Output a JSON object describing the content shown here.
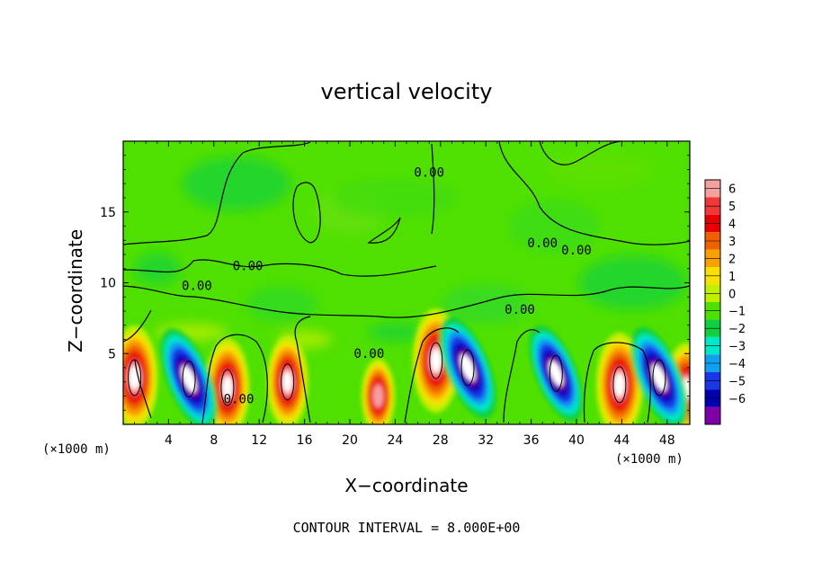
{
  "chart_data": {
    "type": "heatmap",
    "title": "vertical velocity",
    "xlabel": "X−coordinate",
    "ylabel": "Z−coordinate",
    "x_unit": "(×1000 m)",
    "y_unit": "(×1000 m)",
    "xlim": [
      0,
      50
    ],
    "ylim": [
      0,
      20
    ],
    "x_ticks": [
      4,
      8,
      12,
      16,
      20,
      24,
      28,
      32,
      36,
      40,
      44,
      48
    ],
    "y_ticks": [
      5,
      10,
      15
    ],
    "colorbar": {
      "levels": [
        6,
        5,
        4,
        3,
        2,
        1,
        0,
        -1,
        -2,
        -3,
        -4,
        -5,
        -6
      ],
      "labels": [
        "6",
        "5",
        "4",
        "3",
        "2",
        "1",
        "0",
        "−1",
        "−2",
        "−3",
        "−4",
        "−5",
        "−6"
      ],
      "colors": [
        "#f7a0a0",
        "#f03838",
        "#e80000",
        "#f06000",
        "#f8a000",
        "#f8e000",
        "#c0f000",
        "#50e000",
        "#10d040",
        "#00e8c8",
        "#10a0f0",
        "#1838e8",
        "#0000b0",
        "#8000a8"
      ]
    },
    "contour_interval_text": "CONTOUR INTERVAL = 8.000E+00",
    "contour_labels": [
      "0.00",
      "0.00",
      "0.00",
      "0.00",
      "0.00",
      "0.00",
      "0.00",
      "0.00"
    ],
    "updrafts": [
      {
        "x": 1.0,
        "z": 3.3,
        "w": 8
      },
      {
        "x": 9.2,
        "z": 2.6,
        "w": 7
      },
      {
        "x": 14.5,
        "z": 3.0,
        "w": 6
      },
      {
        "x": 22.5,
        "z": 2.0,
        "w": 3
      },
      {
        "x": 27.6,
        "z": 4.5,
        "w": 9
      },
      {
        "x": 43.8,
        "z": 2.8,
        "w": 8
      },
      {
        "x": 49.7,
        "z": 2.5,
        "w": 6
      }
    ],
    "downdrafts": [
      {
        "x": 5.8,
        "z": 3.2,
        "w": -8
      },
      {
        "x": 30.4,
        "z": 4.0,
        "w": -8
      },
      {
        "x": 38.2,
        "z": 3.6,
        "w": -7
      },
      {
        "x": 47.3,
        "z": 3.3,
        "w": -8
      }
    ]
  }
}
